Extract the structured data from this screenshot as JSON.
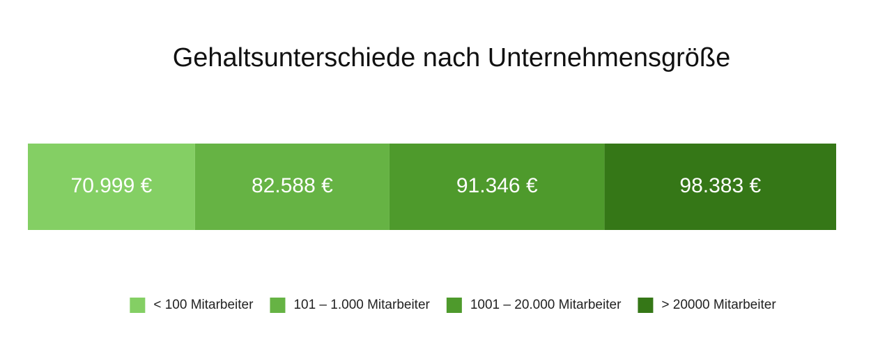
{
  "chart_data": {
    "type": "bar",
    "orientation": "horizontal",
    "stacked": true,
    "title": "Gehaltsunterschiede nach Unternehmensgröße",
    "series": [
      {
        "name": "< 100 Mitarbeiter",
        "color": "#84cf64",
        "values": [
          70999
        ],
        "value_labels": [
          "70.999 €"
        ]
      },
      {
        "name": "101 – 1.000 Mitarbeiter",
        "color": "#66b344",
        "values": [
          82588
        ],
        "value_labels": [
          "82.588 €"
        ]
      },
      {
        "name": "1001 – 20.000 Mitarbeiter",
        "color": "#4e9a2c",
        "values": [
          91346
        ],
        "value_labels": [
          "91.346 €"
        ]
      },
      {
        "name": "> 20000 Mitarbeiter",
        "color": "#357717",
        "values": [
          98383
        ],
        "value_labels": [
          "98.383 €"
        ]
      }
    ],
    "legend": "bottom"
  }
}
